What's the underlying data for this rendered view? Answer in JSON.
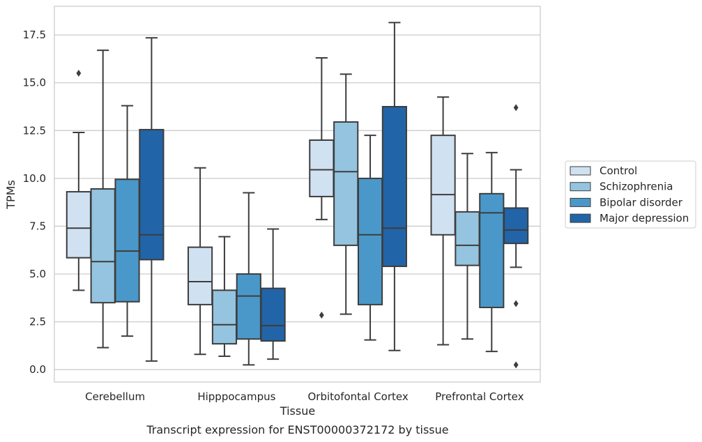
{
  "chart_data": {
    "type": "boxplot",
    "caption": "Transcript expression for ENST00000372172 by tissue",
    "xlabel": "Tissue",
    "ylabel": "TPMs",
    "ylim": [
      -0.65,
      19.0
    ],
    "yticks": [
      0.0,
      2.5,
      5.0,
      7.5,
      10.0,
      12.5,
      15.0,
      17.5
    ],
    "ytick_labels": [
      "0.0",
      "2.5",
      "5.0",
      "7.5",
      "10.0",
      "12.5",
      "15.0",
      "17.5"
    ],
    "grid": true,
    "legend_position": "right",
    "categories": [
      "Cerebellum",
      "Hipppocampus",
      "Orbitofontal Cortex",
      "Prefrontal Cortex"
    ],
    "series": [
      {
        "name": "Control",
        "color": "#d0e1f2",
        "boxes": [
          {
            "whislo": 4.15,
            "q1": 5.85,
            "med": 7.4,
            "q3": 9.3,
            "whishi": 12.4,
            "fliers": [
              15.5
            ]
          },
          {
            "whislo": 0.8,
            "q1": 3.4,
            "med": 4.6,
            "q3": 6.4,
            "whishi": 10.55,
            "fliers": []
          },
          {
            "whislo": 7.85,
            "q1": 9.05,
            "med": 10.45,
            "q3": 12.0,
            "whishi": 16.3,
            "fliers": [
              2.85
            ]
          },
          {
            "whislo": 1.3,
            "q1": 7.05,
            "med": 9.15,
            "q3": 12.25,
            "whishi": 14.25,
            "fliers": []
          }
        ]
      },
      {
        "name": "Schizophrenia",
        "color": "#94c4df",
        "boxes": [
          {
            "whislo": 1.15,
            "q1": 3.5,
            "med": 5.65,
            "q3": 9.45,
            "whishi": 16.7,
            "fliers": []
          },
          {
            "whislo": 0.7,
            "q1": 1.35,
            "med": 2.35,
            "q3": 4.15,
            "whishi": 6.95,
            "fliers": []
          },
          {
            "whislo": 2.9,
            "q1": 6.5,
            "med": 10.35,
            "q3": 12.95,
            "whishi": 15.45,
            "fliers": []
          },
          {
            "whislo": 1.6,
            "q1": 5.45,
            "med": 6.5,
            "q3": 8.25,
            "whishi": 11.3,
            "fliers": []
          }
        ]
      },
      {
        "name": "Bipolar disorder",
        "color": "#4a98c9",
        "boxes": [
          {
            "whislo": 1.75,
            "q1": 3.55,
            "med": 6.2,
            "q3": 9.95,
            "whishi": 13.8,
            "fliers": []
          },
          {
            "whislo": 0.25,
            "q1": 1.6,
            "med": 3.85,
            "q3": 5.0,
            "whishi": 9.25,
            "fliers": []
          },
          {
            "whislo": 1.55,
            "q1": 3.4,
            "med": 7.05,
            "q3": 10.0,
            "whishi": 12.25,
            "fliers": []
          },
          {
            "whislo": 0.95,
            "q1": 3.25,
            "med": 8.2,
            "q3": 9.2,
            "whishi": 11.35,
            "fliers": []
          }
        ]
      },
      {
        "name": "Major depression",
        "color": "#2264a8",
        "boxes": [
          {
            "whislo": 0.45,
            "q1": 5.75,
            "med": 7.05,
            "q3": 12.55,
            "whishi": 17.35,
            "fliers": []
          },
          {
            "whislo": 0.55,
            "q1": 1.5,
            "med": 2.3,
            "q3": 4.25,
            "whishi": 7.35,
            "fliers": []
          },
          {
            "whislo": 1.0,
            "q1": 5.4,
            "med": 7.4,
            "q3": 13.75,
            "whishi": 18.15,
            "fliers": []
          },
          {
            "whislo": 5.35,
            "q1": 6.6,
            "med": 7.3,
            "q3": 8.45,
            "whishi": 10.45,
            "fliers": [
              13.7,
              3.45,
              0.25
            ]
          }
        ]
      }
    ]
  }
}
